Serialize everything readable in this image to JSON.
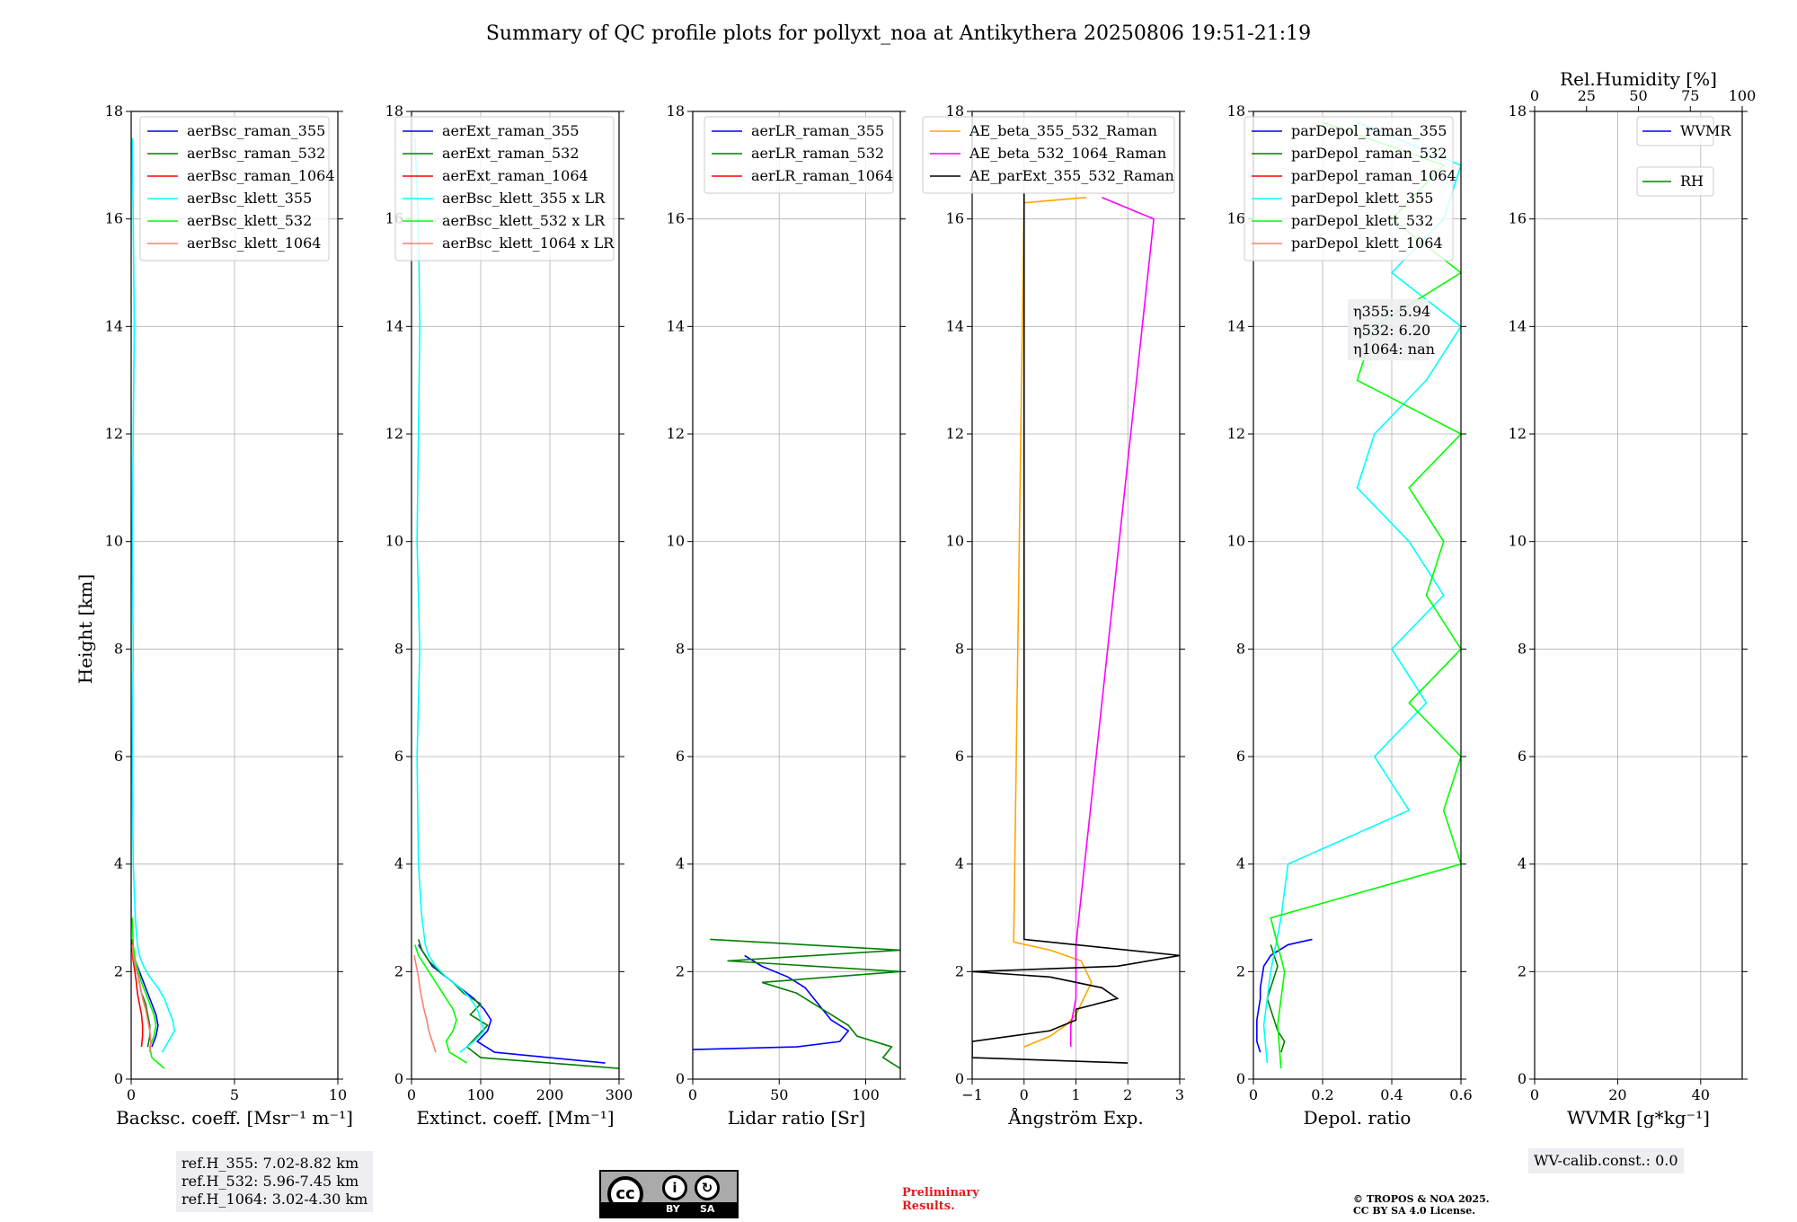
{
  "title": "Summary of QC profile plots for pollyxt_noa at Antikythera 20250806 19:51-21:19",
  "colors": {
    "blue": "#0000ff",
    "green": "#008000",
    "red": "#ff0000",
    "cyan": "#00ffff",
    "lime": "#00ff00",
    "salmon": "#fa8072",
    "orange": "#ffa500",
    "magenta": "#ff00ff",
    "black": "#000000"
  },
  "reference_heights": [
    "ref.H_355: 7.02-8.82 km",
    "ref.H_532: 5.96-7.45 km",
    "ref.H_1064: 3.02-4.30 km"
  ],
  "eta_box": [
    "η355: 5.94",
    "η532: 6.20",
    "η1064: nan"
  ],
  "wv_calib": "WV-calib.const.: 0.0",
  "cc_label": {
    "cc": "cc",
    "by": "BY",
    "sa": "SA"
  },
  "preliminary": [
    "Preliminary",
    "Results."
  ],
  "copyright": [
    "© TROPOS & NOA 2025.",
    "CC BY SA 4.0 License."
  ],
  "chart_data": [
    {
      "type": "line",
      "xlabel": "Backsc. coeff. [Msr⁻¹ m⁻¹]",
      "ylabel": "Height [km]",
      "xlim": [
        0,
        10
      ],
      "ylim": [
        0,
        18
      ],
      "xticks": [
        0,
        5,
        10
      ],
      "yticks": [
        0,
        2,
        4,
        6,
        8,
        10,
        12,
        14,
        16,
        18
      ],
      "grid": true,
      "legend": "top-right",
      "series": [
        {
          "name": "aerBsc_raman_355",
          "color": "#0000ff",
          "y": [
            0.6,
            0.8,
            1.0,
            1.2,
            1.4,
            1.6,
            1.8,
            2.0,
            2.2,
            2.4,
            2.6
          ],
          "x": [
            1.0,
            1.2,
            1.3,
            1.2,
            1.0,
            0.8,
            0.6,
            0.4,
            0.2,
            0.1,
            0.05
          ]
        },
        {
          "name": "aerBsc_raman_532",
          "color": "#008000",
          "y": [
            0.6,
            0.8,
            1.0,
            1.2,
            1.4,
            1.6,
            1.8,
            2.0,
            2.2,
            2.4,
            2.6
          ],
          "x": [
            0.8,
            0.9,
            0.9,
            0.8,
            0.7,
            0.5,
            0.4,
            0.3,
            0.15,
            0.08,
            0.03
          ]
        },
        {
          "name": "aerBsc_raman_1064",
          "color": "#ff0000",
          "y": [
            0.6,
            0.8,
            1.0,
            1.2,
            1.4,
            1.6,
            1.8,
            2.0,
            2.2,
            2.4,
            2.6
          ],
          "x": [
            0.5,
            0.55,
            0.55,
            0.5,
            0.4,
            0.3,
            0.25,
            0.18,
            0.1,
            0.05,
            0.02
          ]
        },
        {
          "name": "aerBsc_klett_355",
          "color": "#00ffff",
          "y": [
            0.5,
            0.7,
            0.9,
            1.1,
            1.3,
            1.5,
            1.7,
            1.9,
            2.1,
            2.3,
            2.5,
            3,
            4,
            6,
            8,
            10,
            12,
            14,
            16,
            17.5
          ],
          "x": [
            1.5,
            1.8,
            2.1,
            2.0,
            1.8,
            1.6,
            1.3,
            0.9,
            0.6,
            0.4,
            0.3,
            0.2,
            0.1,
            0.05,
            0.1,
            0.05,
            0.1,
            0.15,
            0.1,
            0.05
          ]
        },
        {
          "name": "aerBsc_klett_532",
          "color": "#00ff00",
          "y": [
            0.2,
            0.4,
            0.6,
            0.8,
            1.0,
            1.2,
            1.4,
            1.6,
            1.8,
            2.0,
            2.2,
            2.5,
            3
          ],
          "x": [
            1.6,
            1.0,
            0.9,
            1.1,
            1.2,
            1.1,
            0.9,
            0.7,
            0.5,
            0.35,
            0.2,
            0.1,
            0.05
          ]
        },
        {
          "name": "aerBsc_klett_1064",
          "color": "#fa8072",
          "y": [
            0.5,
            0.7,
            0.9,
            1.1,
            1.3,
            1.5,
            1.7,
            1.9,
            2.1,
            2.3,
            2.5
          ],
          "x": [
            0.9,
            0.95,
            0.9,
            0.8,
            0.7,
            0.55,
            0.45,
            0.35,
            0.2,
            0.1,
            0.05
          ]
        }
      ]
    },
    {
      "type": "line",
      "xlabel": "Extinct. coeff. [Mm⁻¹]",
      "xlim": [
        0,
        300
      ],
      "ylim": [
        0,
        18
      ],
      "xticks": [
        0,
        100,
        200,
        300
      ],
      "yticks": [
        0,
        2,
        4,
        6,
        8,
        10,
        12,
        14,
        16,
        18
      ],
      "grid": true,
      "legend": "top-right",
      "series": [
        {
          "name": "aerExt_raman_355",
          "color": "#0000ff",
          "y": [
            0.3,
            0.5,
            0.7,
            0.9,
            1.1,
            1.3,
            1.5,
            1.7,
            1.9,
            2.1,
            2.3,
            2.5
          ],
          "x": [
            280,
            120,
            95,
            110,
            115,
            105,
            90,
            70,
            50,
            30,
            20,
            10
          ]
        },
        {
          "name": "aerExt_raman_532",
          "color": "#008000",
          "y": [
            0.2,
            0.4,
            0.6,
            0.8,
            1.0,
            1.2,
            1.4,
            1.6,
            1.8,
            2.0,
            2.2,
            2.4,
            2.6
          ],
          "x": [
            300,
            100,
            80,
            95,
            110,
            85,
            100,
            75,
            60,
            40,
            25,
            15,
            10
          ]
        },
        {
          "name": "aerExt_raman_1064",
          "color": "#ff0000",
          "y": [],
          "x": []
        },
        {
          "name": "aerBsc_klett_355 x LR",
          "color": "#00ffff",
          "y": [
            0.5,
            0.7,
            0.9,
            1.1,
            1.3,
            1.5,
            1.7,
            1.9,
            2.1,
            2.3,
            2.5,
            3,
            4,
            6,
            8,
            10,
            12,
            14,
            16,
            17.5
          ],
          "x": [
            70,
            90,
            105,
            100,
            95,
            85,
            70,
            50,
            35,
            25,
            20,
            15,
            10,
            8,
            12,
            8,
            10,
            12,
            10,
            5
          ]
        },
        {
          "name": "aerBsc_klett_532 x LR",
          "color": "#00ff00",
          "y": [
            0.3,
            0.5,
            0.7,
            0.9,
            1.1,
            1.3,
            1.5,
            1.7,
            1.9,
            2.1,
            2.3,
            2.5
          ],
          "x": [
            80,
            55,
            50,
            60,
            65,
            60,
            50,
            40,
            30,
            20,
            10,
            5
          ]
        },
        {
          "name": "aerBsc_klett_1064 x LR",
          "color": "#fa8072",
          "y": [
            0.5,
            0.7,
            0.9,
            1.1,
            1.3,
            1.5,
            1.7,
            1.9,
            2.1,
            2.3
          ],
          "x": [
            35,
            30,
            25,
            22,
            18,
            15,
            12,
            10,
            7,
            4
          ]
        }
      ]
    },
    {
      "type": "line",
      "xlabel": "Lidar ratio [Sr]",
      "xlim": [
        0,
        120
      ],
      "ylim": [
        0,
        18
      ],
      "xticks": [
        0,
        50,
        100
      ],
      "yticks": [
        0,
        2,
        4,
        6,
        8,
        10,
        12,
        14,
        16,
        18
      ],
      "grid": true,
      "legend": "top-right",
      "series": [
        {
          "name": "aerLR_raman_355",
          "color": "#0000ff",
          "y": [
            0.55,
            0.6,
            0.7,
            0.9,
            1.1,
            1.3,
            1.5,
            1.7,
            1.9,
            2.1,
            2.3
          ],
          "x": [
            0,
            60,
            85,
            90,
            80,
            75,
            70,
            65,
            55,
            40,
            30
          ]
        },
        {
          "name": "aerLR_raman_532",
          "color": "#008000",
          "y": [
            0.2,
            0.4,
            0.6,
            0.8,
            1.0,
            1.2,
            1.4,
            1.6,
            1.8,
            2.0,
            2.2,
            2.4,
            2.6
          ],
          "x": [
            120,
            110,
            115,
            95,
            90,
            80,
            70,
            60,
            40,
            120,
            20,
            120,
            10
          ]
        },
        {
          "name": "aerLR_raman_1064",
          "color": "#ff0000",
          "y": [],
          "x": []
        }
      ]
    },
    {
      "type": "line",
      "xlabel": "Ångström Exp.",
      "xlim": [
        -1,
        3
      ],
      "ylim": [
        0,
        18
      ],
      "xticks": [
        -1,
        0,
        1,
        2,
        3
      ],
      "yticks": [
        0,
        2,
        4,
        6,
        8,
        10,
        12,
        14,
        16,
        18
      ],
      "grid": true,
      "legend": "top-right",
      "series": [
        {
          "name": "AE_beta_355_532_Raman",
          "color": "#ffa500",
          "y": [
            0.6,
            0.8,
            1.0,
            1.2,
            1.4,
            1.6,
            1.8,
            2.0,
            2.2,
            2.4,
            2.55,
            16.3,
            16.4
          ],
          "x": [
            0.0,
            0.5,
            0.8,
            1.0,
            1.1,
            1.2,
            1.3,
            1.2,
            1.1,
            0.5,
            -0.2,
            0.0,
            1.2
          ]
        },
        {
          "name": "AE_beta_532_1064_Raman",
          "color": "#ff00ff",
          "y": [
            0.6,
            0.8,
            1.0,
            1.5,
            2.0,
            2.3,
            2.5,
            16.0,
            16.4
          ],
          "x": [
            0.9,
            0.9,
            0.9,
            1.0,
            1.0,
            1.0,
            1.0,
            2.5,
            1.5
          ]
        },
        {
          "name": "AE_parExt_355_532_Raman",
          "color": "#000000",
          "y": [
            0.3,
            0.4,
            0.7,
            0.9,
            1.1,
            1.3,
            1.5,
            1.7,
            1.9,
            2.0,
            2.1,
            2.3,
            2.4,
            2.6,
            16.5
          ],
          "x": [
            2.0,
            -1.0,
            -1.0,
            0.5,
            1.0,
            1.0,
            1.8,
            1.5,
            0.5,
            -1.0,
            1.8,
            3.0,
            2.0,
            0.0,
            0.0
          ]
        }
      ]
    },
    {
      "type": "line",
      "xlabel": "Depol. ratio",
      "xlim": [
        0,
        0.6
      ],
      "ylim": [
        0,
        18
      ],
      "xticks": [
        0.0,
        0.2,
        0.4,
        0.6
      ],
      "yticks": [
        0,
        2,
        4,
        6,
        8,
        10,
        12,
        14,
        16,
        18
      ],
      "grid": true,
      "legend": "top-right",
      "series": [
        {
          "name": "parDepol_raman_355",
          "color": "#0000ff",
          "y": [
            0.5,
            0.7,
            0.9,
            1.1,
            1.3,
            1.5,
            1.7,
            1.9,
            2.1,
            2.3,
            2.5,
            2.6
          ],
          "x": [
            0.02,
            0.01,
            0.01,
            0.01,
            0.015,
            0.02,
            0.02,
            0.025,
            0.03,
            0.05,
            0.1,
            0.17
          ]
        },
        {
          "name": "parDepol_raman_532",
          "color": "#008000",
          "y": [
            0.5,
            0.7,
            0.9,
            1.1,
            1.3,
            1.5,
            1.7,
            1.9,
            2.1,
            2.3,
            2.5
          ],
          "x": [
            0.08,
            0.09,
            0.07,
            0.06,
            0.05,
            0.04,
            0.05,
            0.06,
            0.07,
            0.06,
            0.05
          ]
        },
        {
          "name": "parDepol_raman_1064",
          "color": "#ff0000",
          "y": [],
          "x": []
        },
        {
          "name": "parDepol_klett_355",
          "color": "#00ffff",
          "y": [
            0.3,
            1.0,
            2.0,
            3.0,
            4.0,
            5.0,
            6.0,
            7.0,
            8.0,
            9.0,
            10.0,
            11.0,
            12.0,
            13.0,
            14.0,
            15.0,
            16.0,
            17.0,
            17.8
          ],
          "x": [
            0.04,
            0.03,
            0.05,
            0.08,
            0.1,
            0.45,
            0.35,
            0.5,
            0.4,
            0.55,
            0.45,
            0.3,
            0.35,
            0.5,
            0.6,
            0.4,
            0.55,
            0.6,
            0.3
          ]
        },
        {
          "name": "parDepol_klett_532",
          "color": "#00ff00",
          "y": [
            0.2,
            1.0,
            2.0,
            3.0,
            4.0,
            5.0,
            6.0,
            7.0,
            8.0,
            9.0,
            10.0,
            11.0,
            12.0,
            13.0,
            14.0,
            15.0,
            16.0,
            17.0,
            17.8
          ],
          "x": [
            0.08,
            0.07,
            0.09,
            0.05,
            0.6,
            0.55,
            0.6,
            0.45,
            0.6,
            0.5,
            0.55,
            0.45,
            0.6,
            0.3,
            0.35,
            0.6,
            0.4,
            0.55,
            0.2
          ]
        },
        {
          "name": "parDepol_klett_1064",
          "color": "#fa8072",
          "y": [],
          "x": []
        }
      ]
    },
    {
      "type": "line",
      "xlabel": "WVMR [g*kg⁻¹]",
      "top_xlabel": "Rel.Humidity [%]",
      "xlim": [
        0,
        50
      ],
      "top_xlim": [
        0,
        100
      ],
      "ylim": [
        0,
        18
      ],
      "xticks": [
        0,
        20,
        40
      ],
      "top_xticks": [
        0,
        25,
        50,
        75,
        100
      ],
      "yticks": [
        0,
        2,
        4,
        6,
        8,
        10,
        12,
        14,
        16,
        18
      ],
      "grid": true,
      "legend": "top-right",
      "series": [
        {
          "name": "WVMR",
          "color": "#0000ff",
          "y": [],
          "x": []
        },
        {
          "name": "RH",
          "color": "#008000",
          "y": [],
          "x": []
        }
      ]
    }
  ]
}
